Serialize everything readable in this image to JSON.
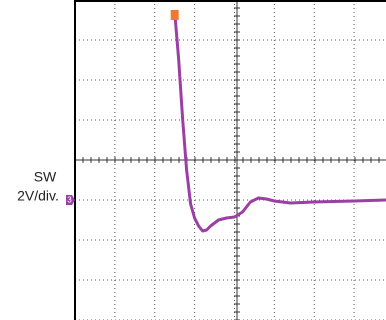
{
  "chart_data": {
    "type": "line",
    "label": "SW",
    "scale_label": "2V/div.",
    "channel": "3",
    "x": [
      2.5,
      2.6,
      2.7,
      2.8,
      2.9,
      3.0,
      3.1,
      3.2,
      3.3,
      3.4,
      3.6,
      3.8,
      4.0,
      4.2,
      4.4,
      4.6,
      4.8,
      5.0,
      5.4,
      6.0,
      7.0,
      7.8
    ],
    "series": [
      {
        "name": "SW",
        "color": "#9b3fa6",
        "values": [
          9.4,
          7,
          4,
          1.5,
          -0.2,
          -0.9,
          -1.3,
          -1.55,
          -1.5,
          -1.3,
          -1.0,
          -0.9,
          -0.85,
          -0.6,
          -0.1,
          0.1,
          0.05,
          -0.05,
          -0.15,
          -0.1,
          -0.05,
          0
        ]
      }
    ],
    "xlim": [
      0,
      7.8
    ],
    "xticks": [
      0,
      1,
      2,
      3,
      4,
      5,
      6,
      7
    ],
    "ylim": [
      -6,
      10
    ],
    "yticks": [
      -6,
      -4,
      -2,
      0,
      2,
      4,
      6,
      8,
      10
    ],
    "grid": true,
    "trigger_color": "#f07a2a"
  }
}
